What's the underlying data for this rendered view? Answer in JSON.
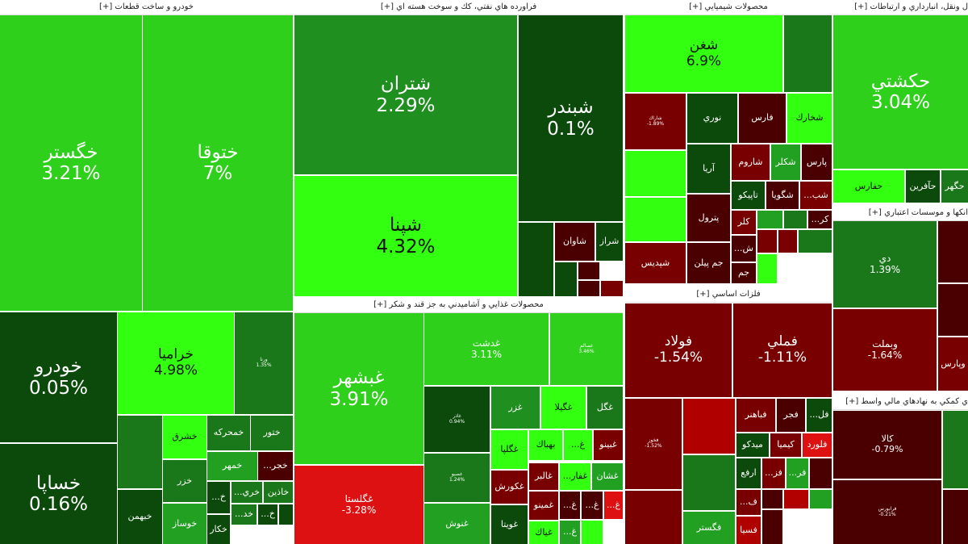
{
  "sectors": [
    {
      "title": "خودرو و ساخت قطعات [+]"
    },
    {
      "title": "فراورده هاي نفتي، كك و سوخت هسته اي [+]"
    },
    {
      "title": "محصولات شيميايي [+]"
    },
    {
      "title": "ل ونقل، انبارداري و ارتباطات [+]"
    },
    {
      "title": "محصولات غذايي و آشاميدني به جز قند و شكر [+]"
    },
    {
      "title": "فلزات اساسي [+]"
    },
    {
      "title": "انكها و موسسات اعتباري [+]"
    },
    {
      "title": "ي كمكي به نهادهاي مالي واسط [+]"
    }
  ],
  "colors": {
    "bright": "#33ff11",
    "light": "#2fd01c",
    "mid": "#1f8f1f",
    "green": "#1a781a",
    "lgreen": "#22a022",
    "dark": "#0b4a0b",
    "dred": "#4a0000",
    "red": "#780000",
    "bred": "#b00000",
    "vred": "#dd1111"
  },
  "tiles": [
    {
      "label": "خگستر",
      "pct": "3.21%",
      "color": "light"
    },
    {
      "label": "ختوقا",
      "pct": "7%",
      "color": "light"
    },
    {
      "label": "خودرو",
      "pct": "0.05%",
      "color": "dark"
    },
    {
      "label": "خساپا",
      "pct": "0.16%",
      "color": "dark"
    },
    {
      "label": "خراميا",
      "pct": "4.98%",
      "color": "bright"
    },
    {
      "label": "ورنا",
      "pct": "1.35%",
      "color": "green"
    },
    {
      "label": "",
      "pct": "",
      "color": "green"
    },
    {
      "label": "خبهمن",
      "pct": "",
      "color": "dark"
    },
    {
      "label": "خشرق",
      "pct": "",
      "color": "bright"
    },
    {
      "label": "خزر",
      "pct": "",
      "color": "green"
    },
    {
      "label": "خوساز",
      "pct": "",
      "color": "lgreen"
    },
    {
      "label": "خمحركه",
      "pct": "",
      "color": "green"
    },
    {
      "label": "ختور",
      "pct": "",
      "color": "green"
    },
    {
      "label": "خمهر",
      "pct": "",
      "color": "lgreen"
    },
    {
      "label": "خجر...",
      "pct": "",
      "color": "dred"
    },
    {
      "label": "خ...",
      "pct": "",
      "color": "dark"
    },
    {
      "label": "خكار",
      "pct": "",
      "color": "dark"
    },
    {
      "label": "خري...",
      "pct": "",
      "color": "green"
    },
    {
      "label": "خاذين",
      "pct": "",
      "color": "green"
    },
    {
      "label": "خد...",
      "pct": "",
      "color": "green"
    },
    {
      "label": "خ...",
      "pct": "",
      "color": "dark"
    },
    {
      "label": "",
      "pct": "",
      "color": "dark"
    },
    {
      "label": "شتران",
      "pct": "2.29%",
      "color": "mid"
    },
    {
      "label": "شپنا",
      "pct": "4.32%",
      "color": "bright"
    },
    {
      "label": "شبندر",
      "pct": "0.1%",
      "color": "dark"
    },
    {
      "label": "",
      "pct": "",
      "color": "dark"
    },
    {
      "label": "شاوان",
      "pct": "",
      "color": "dred"
    },
    {
      "label": "شراز",
      "pct": "",
      "color": "dark"
    },
    {
      "label": "",
      "pct": "",
      "color": "dark"
    },
    {
      "label": "",
      "pct": "",
      "color": "dred"
    },
    {
      "label": "",
      "pct": "",
      "color": "dred"
    },
    {
      "label": "",
      "pct": "",
      "color": "red"
    },
    {
      "label": "غبشهر",
      "pct": "3.91%",
      "color": "light"
    },
    {
      "label": "غگلستا",
      "pct": "-3.28%",
      "color": "vred"
    },
    {
      "label": "غدشت",
      "pct": "3.11%",
      "color": "light"
    },
    {
      "label": "غسالم",
      "pct": "3.46%",
      "color": "light"
    },
    {
      "label": "غاذر",
      "pct": "0.94%",
      "color": "dark"
    },
    {
      "label": "غصبو",
      "pct": "1.24%",
      "color": "green"
    },
    {
      "label": "غنوش",
      "pct": "",
      "color": "lgreen"
    },
    {
      "label": "غزر",
      "pct": "",
      "color": "mid"
    },
    {
      "label": "غگيلا",
      "pct": "",
      "color": "bright"
    },
    {
      "label": "غگل",
      "pct": "",
      "color": "green"
    },
    {
      "label": "غگلپا",
      "pct": "",
      "color": "bright"
    },
    {
      "label": "بهباك",
      "pct": "",
      "color": "bright"
    },
    {
      "label": "غ...",
      "pct": "",
      "color": "bright"
    },
    {
      "label": "غبينو",
      "pct": "",
      "color": "red"
    },
    {
      "label": "غكورش",
      "pct": "",
      "color": "red"
    },
    {
      "label": "غويتا",
      "pct": "",
      "color": "dark"
    },
    {
      "label": "غالبر",
      "pct": "",
      "color": "red"
    },
    {
      "label": "غمينو",
      "pct": "",
      "color": "red"
    },
    {
      "label": "غياك",
      "pct": "",
      "color": "bright"
    },
    {
      "label": "غفار...",
      "pct": "",
      "color": "bright"
    },
    {
      "label": "غشان",
      "pct": "",
      "color": "lgreen"
    },
    {
      "label": "غ...",
      "pct": "",
      "color": "dred"
    },
    {
      "label": "غ...",
      "pct": "",
      "color": "dred"
    },
    {
      "label": "غ...",
      "pct": "",
      "color": "vred"
    },
    {
      "label": "غ...",
      "pct": "",
      "color": "lgreen"
    },
    {
      "label": "",
      "pct": "",
      "color": "bright"
    },
    {
      "label": "شغن",
      "pct": "6.9%",
      "color": "bright"
    },
    {
      "label": "",
      "pct": "",
      "color": "green"
    },
    {
      "label": "شاراك",
      "pct": "-1.89%",
      "color": "red"
    },
    {
      "label": "",
      "pct": "",
      "color": "bright"
    },
    {
      "label": "",
      "pct": "",
      "color": "bright"
    },
    {
      "label": "شپديس",
      "pct": "",
      "color": "red"
    },
    {
      "label": "نوري",
      "pct": "",
      "color": "dark"
    },
    {
      "label": "فارس",
      "pct": "",
      "color": "dred"
    },
    {
      "label": "شخارك",
      "pct": "",
      "color": "bright"
    },
    {
      "label": "آريا",
      "pct": "",
      "color": "dark"
    },
    {
      "label": "پترول",
      "pct": "",
      "color": "dred"
    },
    {
      "label": "جم پيلن",
      "pct": "",
      "color": "dred"
    },
    {
      "label": "شاروم",
      "pct": "",
      "color": "red"
    },
    {
      "label": "شكلر",
      "pct": "",
      "color": "lgreen"
    },
    {
      "label": "پارس",
      "pct": "",
      "color": "dred"
    },
    {
      "label": "تاپيكو",
      "pct": "",
      "color": "dark"
    },
    {
      "label": "شگويا",
      "pct": "",
      "color": "dred"
    },
    {
      "label": "شب...",
      "pct": "",
      "color": "red"
    },
    {
      "label": "كلر",
      "pct": "",
      "color": "red"
    },
    {
      "label": "ش...",
      "pct": "",
      "color": "dred"
    },
    {
      "label": "جم",
      "pct": "",
      "color": "dred"
    },
    {
      "label": "",
      "pct": "",
      "color": "lgreen"
    },
    {
      "label": "",
      "pct": "",
      "color": "green"
    },
    {
      "label": "كر...",
      "pct": "",
      "color": "dred"
    },
    {
      "label": "",
      "pct": "",
      "color": "red"
    },
    {
      "label": "",
      "pct": "",
      "color": "bright"
    },
    {
      "label": "",
      "pct": "",
      "color": "red"
    },
    {
      "label": "",
      "pct": "",
      "color": "green"
    },
    {
      "label": "فولاد",
      "pct": "-1.54%",
      "color": "red"
    },
    {
      "label": "فملي",
      "pct": "-1.11%",
      "color": "red"
    },
    {
      "label": "فخوز",
      "pct": "-1.52%",
      "color": "red"
    },
    {
      "label": "",
      "pct": "",
      "color": "red"
    },
    {
      "label": "",
      "pct": "",
      "color": "bred"
    },
    {
      "label": "",
      "pct": "",
      "color": "green"
    },
    {
      "label": "فگستر",
      "pct": "",
      "color": "lgreen"
    },
    {
      "label": "فباهنر",
      "pct": "",
      "color": "red"
    },
    {
      "label": "فجر",
      "pct": "",
      "color": "dred"
    },
    {
      "label": "فل...",
      "pct": "",
      "color": "dark"
    },
    {
      "label": "ميدكو",
      "pct": "",
      "color": "dark"
    },
    {
      "label": "كيميا",
      "pct": "",
      "color": "red"
    },
    {
      "label": "فلورد",
      "pct": "",
      "color": "vred"
    },
    {
      "label": "ارفع",
      "pct": "",
      "color": "dark"
    },
    {
      "label": "فز...",
      "pct": "",
      "color": "red"
    },
    {
      "label": "فر...",
      "pct": "",
      "color": "lgreen"
    },
    {
      "label": "",
      "pct": "",
      "color": "dred"
    },
    {
      "label": "ف...",
      "pct": "",
      "color": "red"
    },
    {
      "label": "فسيا",
      "pct": "",
      "color": "bred"
    },
    {
      "label": "",
      "pct": "",
      "color": "dred"
    },
    {
      "label": "",
      "pct": "",
      "color": "bred"
    },
    {
      "label": "",
      "pct": "",
      "color": "dred"
    },
    {
      "label": "",
      "pct": "",
      "color": "lgreen"
    },
    {
      "label": "حكشتي",
      "pct": "3.04%",
      "color": "light"
    },
    {
      "label": "حفارس",
      "pct": "",
      "color": "bright"
    },
    {
      "label": "حآفرين",
      "pct": "",
      "color": "dark"
    },
    {
      "label": "حگهر",
      "pct": "",
      "color": "green"
    },
    {
      "label": "دي",
      "pct": "1.39%",
      "color": "green"
    },
    {
      "label": "وبملت",
      "pct": "-1.64%",
      "color": "red"
    },
    {
      "label": "",
      "pct": "",
      "color": "dred"
    },
    {
      "label": "",
      "pct": "",
      "color": "dred"
    },
    {
      "label": "وپارس",
      "pct": "",
      "color": "red"
    },
    {
      "label": "كالا",
      "pct": "-0.79%",
      "color": "dred"
    },
    {
      "label": "فرابورس",
      "pct": "-0.21%",
      "color": "dred"
    },
    {
      "label": "",
      "pct": "",
      "color": "green"
    },
    {
      "label": "",
      "pct": "",
      "color": "dred"
    }
  ]
}
